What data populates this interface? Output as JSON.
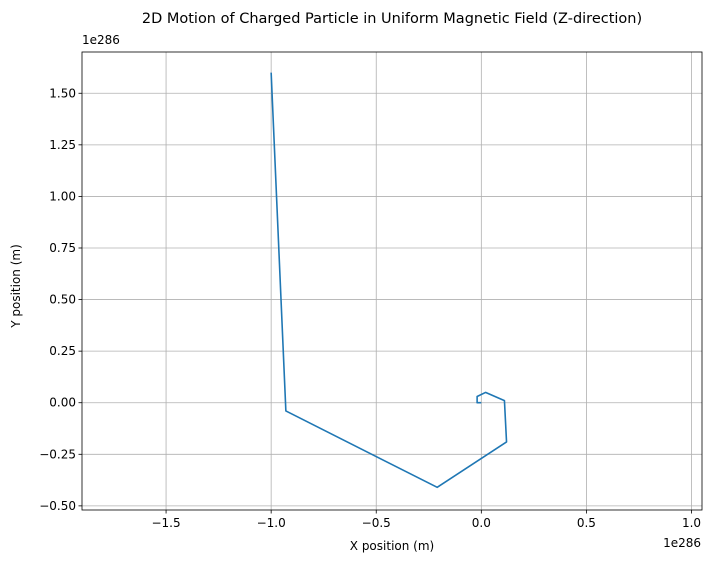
{
  "chart_data": {
    "type": "line",
    "title": "2D Motion of Charged Particle in Uniform Magnetic Field (Z-direction)",
    "xlabel": "X position (m)",
    "ylabel": "Y position (m)",
    "x_offset_label": "1e286",
    "y_offset_label": "1e286",
    "scale_exponent": 286,
    "xlim": [
      -1.9,
      1.05
    ],
    "ylim": [
      -0.52,
      1.7
    ],
    "xticks": [
      -1.5,
      -1.0,
      -0.5,
      0.0,
      0.5,
      1.0
    ],
    "xtick_labels": [
      "−1.5",
      "−1.0",
      "−0.5",
      "0.0",
      "0.5",
      "1.0"
    ],
    "yticks": [
      -0.5,
      -0.25,
      0.0,
      0.25,
      0.5,
      0.75,
      1.0,
      1.25,
      1.5
    ],
    "ytick_labels": [
      "−0.50",
      "−0.25",
      "0.00",
      "0.25",
      "0.50",
      "0.75",
      "1.00",
      "1.25",
      "1.50"
    ],
    "grid": true,
    "series": [
      {
        "color": "#1f77b4",
        "x": [
          0.0,
          -0.02,
          -0.02,
          0.02,
          0.11,
          0.12,
          -0.21,
          -0.93,
          -1.0
        ],
        "y": [
          0.0,
          0.0,
          0.03,
          0.05,
          0.01,
          -0.19,
          -0.41,
          -0.04,
          1.6
        ]
      }
    ]
  }
}
